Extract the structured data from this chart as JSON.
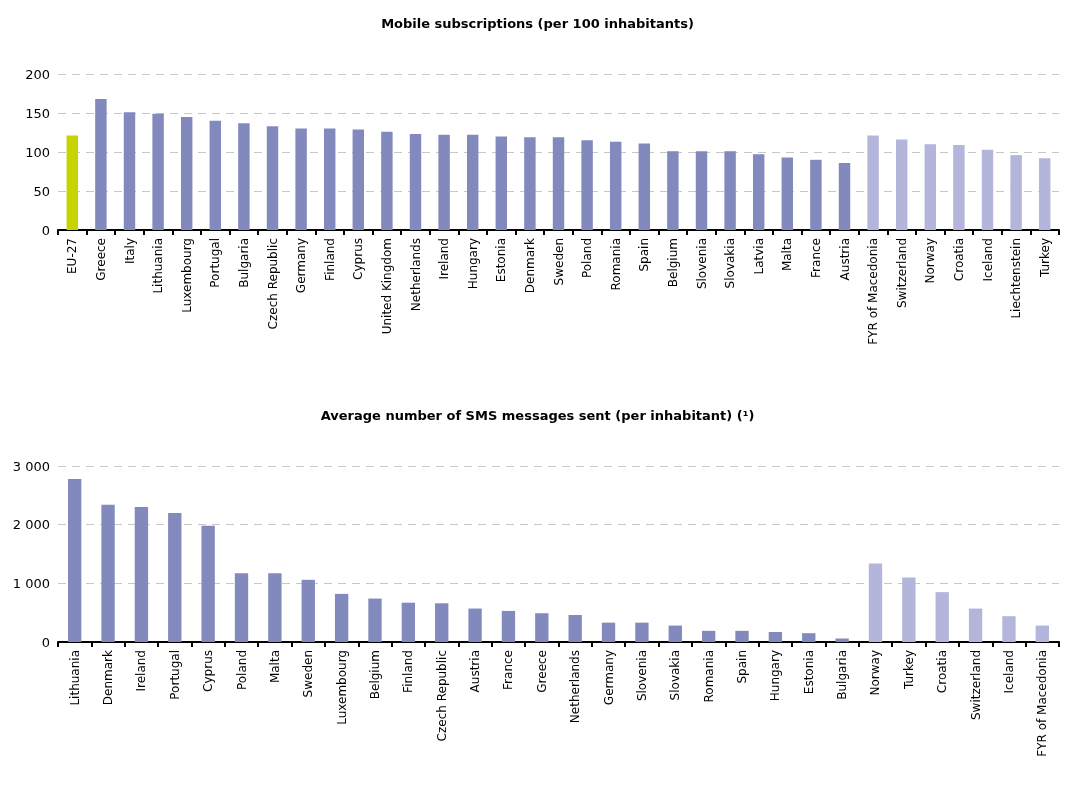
{
  "chart_data": [
    {
      "type": "bar",
      "title": "Mobile subscriptions (per 100 inhabitants)",
      "categories": [
        "EU-27",
        "Greece",
        "Italy",
        "Lithuania",
        "Luxembourg",
        "Portugal",
        "Bulgaria",
        "Czech Republic",
        "Germany",
        "Finland",
        "Cyprus",
        "United Kingdom",
        "Netherlands",
        "Ireland",
        "Hungary",
        "Estonia",
        "Denmark",
        "Sweden",
        "Poland",
        "Romania",
        "Spain",
        "Belgium",
        "Slovenia",
        "Slovakia",
        "Latvia",
        "Malta",
        "France",
        "Austria",
        "FYR of Macedonia",
        "Switzerland",
        "Norway",
        "Croatia",
        "Iceland",
        "Liechtenstein",
        "Turkey"
      ],
      "values": [
        121,
        168,
        151,
        149,
        145,
        140,
        137,
        133,
        130,
        130,
        129,
        126,
        123,
        122,
        122,
        120,
        119,
        119,
        115,
        113,
        111,
        101,
        101,
        101,
        97,
        93,
        90,
        86,
        121,
        116,
        110,
        109,
        103,
        96,
        92
      ],
      "colors": [
        "#c8d400",
        "#8289bd",
        "#8289bd",
        "#8289bd",
        "#8289bd",
        "#8289bd",
        "#8289bd",
        "#8289bd",
        "#8289bd",
        "#8289bd",
        "#8289bd",
        "#8289bd",
        "#8289bd",
        "#8289bd",
        "#8289bd",
        "#8289bd",
        "#8289bd",
        "#8289bd",
        "#8289bd",
        "#8289bd",
        "#8289bd",
        "#8289bd",
        "#8289bd",
        "#8289bd",
        "#8289bd",
        "#8289bd",
        "#8289bd",
        "#8289bd",
        "#b3b6da",
        "#b3b6da",
        "#b3b6da",
        "#b3b6da",
        "#b3b6da",
        "#b3b6da",
        "#b3b6da"
      ],
      "ylim": [
        0,
        200
      ],
      "yticks": [
        0,
        50,
        100,
        150,
        200
      ],
      "grid": "y"
    },
    {
      "type": "bar",
      "title": "Average number of SMS messages sent (per inhabitant) (¹)",
      "categories": [
        "Lithuania",
        "Denmark",
        "Ireland",
        "Portugal",
        "Cyprus",
        "Poland",
        "Malta",
        "Sweden",
        "Luxembourg",
        "Belgium",
        "Finland",
        "Czech Republic",
        "Austria",
        "France",
        "Greece",
        "Netherlands",
        "Germany",
        "Slovenia",
        "Slovakia",
        "Romania",
        "Spain",
        "Hungary",
        "Estonia",
        "Bulgaria",
        "Norway",
        "Turkey",
        "Croatia",
        "Switzerland",
        "Iceland",
        "FYR of Macedonia"
      ],
      "values": [
        2780,
        2340,
        2300,
        2200,
        1980,
        1170,
        1170,
        1060,
        820,
        740,
        670,
        660,
        570,
        530,
        490,
        460,
        330,
        330,
        280,
        190,
        190,
        170,
        150,
        60,
        1340,
        1100,
        850,
        570,
        440,
        280
      ],
      "colors": [
        "#8289bd",
        "#8289bd",
        "#8289bd",
        "#8289bd",
        "#8289bd",
        "#8289bd",
        "#8289bd",
        "#8289bd",
        "#8289bd",
        "#8289bd",
        "#8289bd",
        "#8289bd",
        "#8289bd",
        "#8289bd",
        "#8289bd",
        "#8289bd",
        "#8289bd",
        "#8289bd",
        "#8289bd",
        "#8289bd",
        "#8289bd",
        "#8289bd",
        "#8289bd",
        "#8289bd",
        "#b3b6da",
        "#b3b6da",
        "#b3b6da",
        "#b3b6da",
        "#b3b6da",
        "#b3b6da"
      ],
      "ylim": [
        0,
        3000
      ],
      "yticks": [
        0,
        {
          "value": 1000,
          "label": "1 000"
        },
        {
          "value": 2000,
          "label": "2 000"
        },
        {
          "value": 3000,
          "label": "3 000"
        }
      ],
      "grid": "y"
    }
  ]
}
